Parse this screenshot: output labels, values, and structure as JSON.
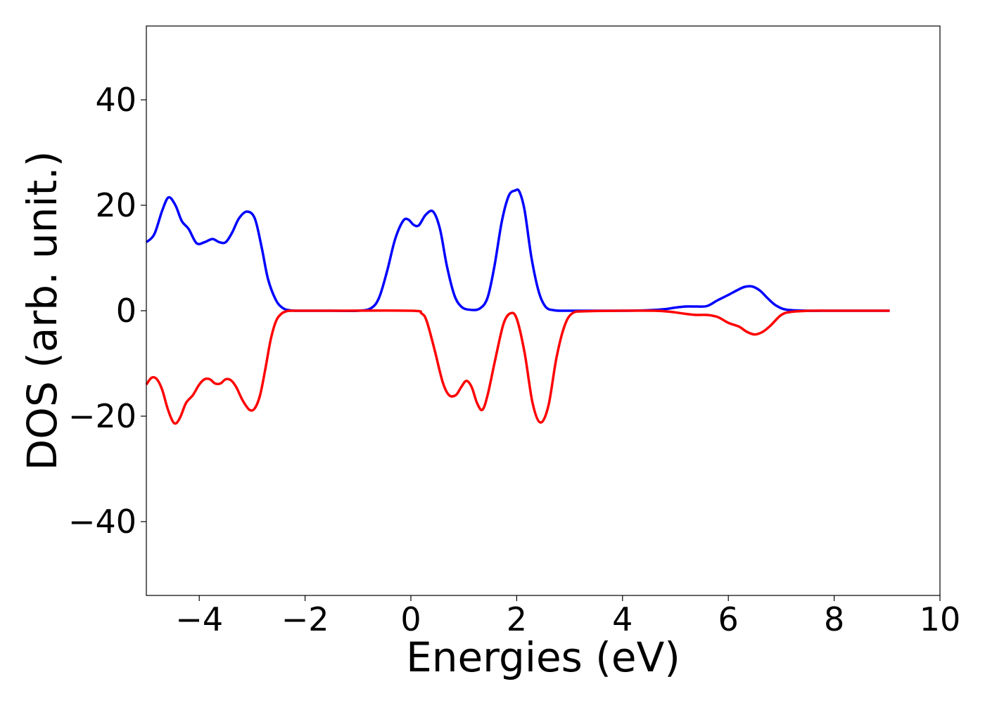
{
  "chart_data": {
    "type": "line",
    "title": "",
    "xlabel": "Energies (eV)",
    "ylabel": "DOS (arb. unit.)",
    "xlim": [
      -5,
      10
    ],
    "ylim": [
      -54,
      54
    ],
    "x_ticks": [
      -4,
      -2,
      0,
      2,
      4,
      6,
      8,
      10
    ],
    "y_ticks": [
      -40,
      -20,
      0,
      20,
      40
    ],
    "x_tick_labels": [
      "−4",
      "−2",
      "0",
      "2",
      "4",
      "6",
      "8",
      "10"
    ],
    "y_tick_labels": [
      "−40",
      "−20",
      "0",
      "20",
      "40"
    ],
    "grid": false,
    "legend": "none",
    "series": [
      {
        "color": "#0000ff",
        "x": [
          -5.0,
          -4.85,
          -4.7,
          -4.58,
          -4.45,
          -4.33,
          -4.2,
          -4.05,
          -3.9,
          -3.75,
          -3.62,
          -3.5,
          -3.38,
          -3.25,
          -3.1,
          -2.95,
          -2.82,
          -2.7,
          -2.55,
          -2.42,
          -2.3,
          -2.15,
          -1.9,
          -1.5,
          -1.0,
          -0.75,
          -0.6,
          -0.45,
          -0.3,
          -0.15,
          -0.05,
          0.05,
          0.15,
          0.28,
          0.42,
          0.55,
          0.68,
          0.82,
          0.95,
          1.1,
          1.3,
          1.45,
          1.58,
          1.72,
          1.85,
          1.97,
          2.05,
          2.15,
          2.28,
          2.42,
          2.55,
          2.7,
          2.85,
          3.0,
          3.5,
          4.0,
          4.5,
          4.8,
          5.0,
          5.2,
          5.4,
          5.6,
          5.8,
          6.0,
          6.15,
          6.3,
          6.45,
          6.6,
          6.75,
          6.9,
          7.1,
          7.5,
          8.0,
          8.5,
          9.05
        ],
        "values": [
          13.0,
          14.5,
          19.0,
          21.5,
          20.0,
          17.0,
          15.5,
          12.8,
          13.0,
          13.6,
          13.0,
          13.0,
          14.8,
          17.5,
          18.8,
          17.5,
          12.0,
          6.0,
          2.0,
          0.5,
          0.1,
          0.0,
          0.0,
          0.0,
          0.0,
          0.5,
          2.5,
          7.5,
          13.5,
          17.0,
          17.3,
          16.3,
          16.2,
          18.2,
          18.8,
          15.5,
          8.5,
          3.0,
          0.8,
          0.2,
          0.4,
          2.5,
          8.5,
          17.0,
          21.8,
          22.8,
          22.6,
          19.0,
          10.0,
          3.5,
          0.7,
          0.1,
          0.0,
          0.0,
          0.0,
          0.0,
          0.1,
          0.3,
          0.6,
          0.8,
          0.8,
          0.9,
          2.0,
          3.0,
          3.8,
          4.5,
          4.6,
          3.8,
          2.3,
          1.0,
          0.2,
          0.0,
          0.0,
          0.0,
          0.0
        ]
      },
      {
        "color": "#ff0000",
        "x": [
          -5.0,
          -4.9,
          -4.8,
          -4.7,
          -4.6,
          -4.5,
          -4.43,
          -4.35,
          -4.25,
          -4.12,
          -4.0,
          -3.9,
          -3.8,
          -3.7,
          -3.6,
          -3.5,
          -3.4,
          -3.3,
          -3.18,
          -3.05,
          -2.95,
          -2.85,
          -2.75,
          -2.65,
          -2.55,
          -2.45,
          -2.35,
          -2.2,
          -1.5,
          0.0,
          0.2,
          0.3,
          0.45,
          0.6,
          0.72,
          0.85,
          0.95,
          1.05,
          1.15,
          1.25,
          1.35,
          1.45,
          1.6,
          1.75,
          1.88,
          2.0,
          2.15,
          2.3,
          2.45,
          2.6,
          2.75,
          2.9,
          3.05,
          3.3,
          4.0,
          4.6,
          4.9,
          5.2,
          5.4,
          5.6,
          5.8,
          6.0,
          6.2,
          6.35,
          6.5,
          6.65,
          6.8,
          7.0,
          7.2,
          7.6,
          8.0,
          8.5,
          9.05
        ],
        "values": [
          -14.0,
          -12.7,
          -13.0,
          -15.0,
          -18.5,
          -21.0,
          -21.3,
          -20.0,
          -17.5,
          -16.0,
          -14.0,
          -13.0,
          -13.0,
          -13.8,
          -13.8,
          -13.0,
          -13.2,
          -14.5,
          -17.0,
          -18.8,
          -18.5,
          -16.0,
          -11.0,
          -5.5,
          -2.0,
          -0.6,
          -0.1,
          0.0,
          0.0,
          0.0,
          -0.5,
          -2.0,
          -7.5,
          -13.5,
          -16.0,
          -16.0,
          -14.5,
          -13.3,
          -14.5,
          -17.5,
          -18.8,
          -16.0,
          -9.0,
          -2.5,
          -0.5,
          -1.5,
          -8.0,
          -17.5,
          -21.2,
          -18.0,
          -9.0,
          -3.0,
          -0.5,
          -0.1,
          0.0,
          0.0,
          -0.2,
          -0.6,
          -0.8,
          -0.8,
          -1.2,
          -2.3,
          -3.0,
          -4.0,
          -4.5,
          -4.0,
          -2.8,
          -0.8,
          -0.2,
          0.0,
          0.0,
          0.0,
          0.0
        ]
      }
    ]
  }
}
